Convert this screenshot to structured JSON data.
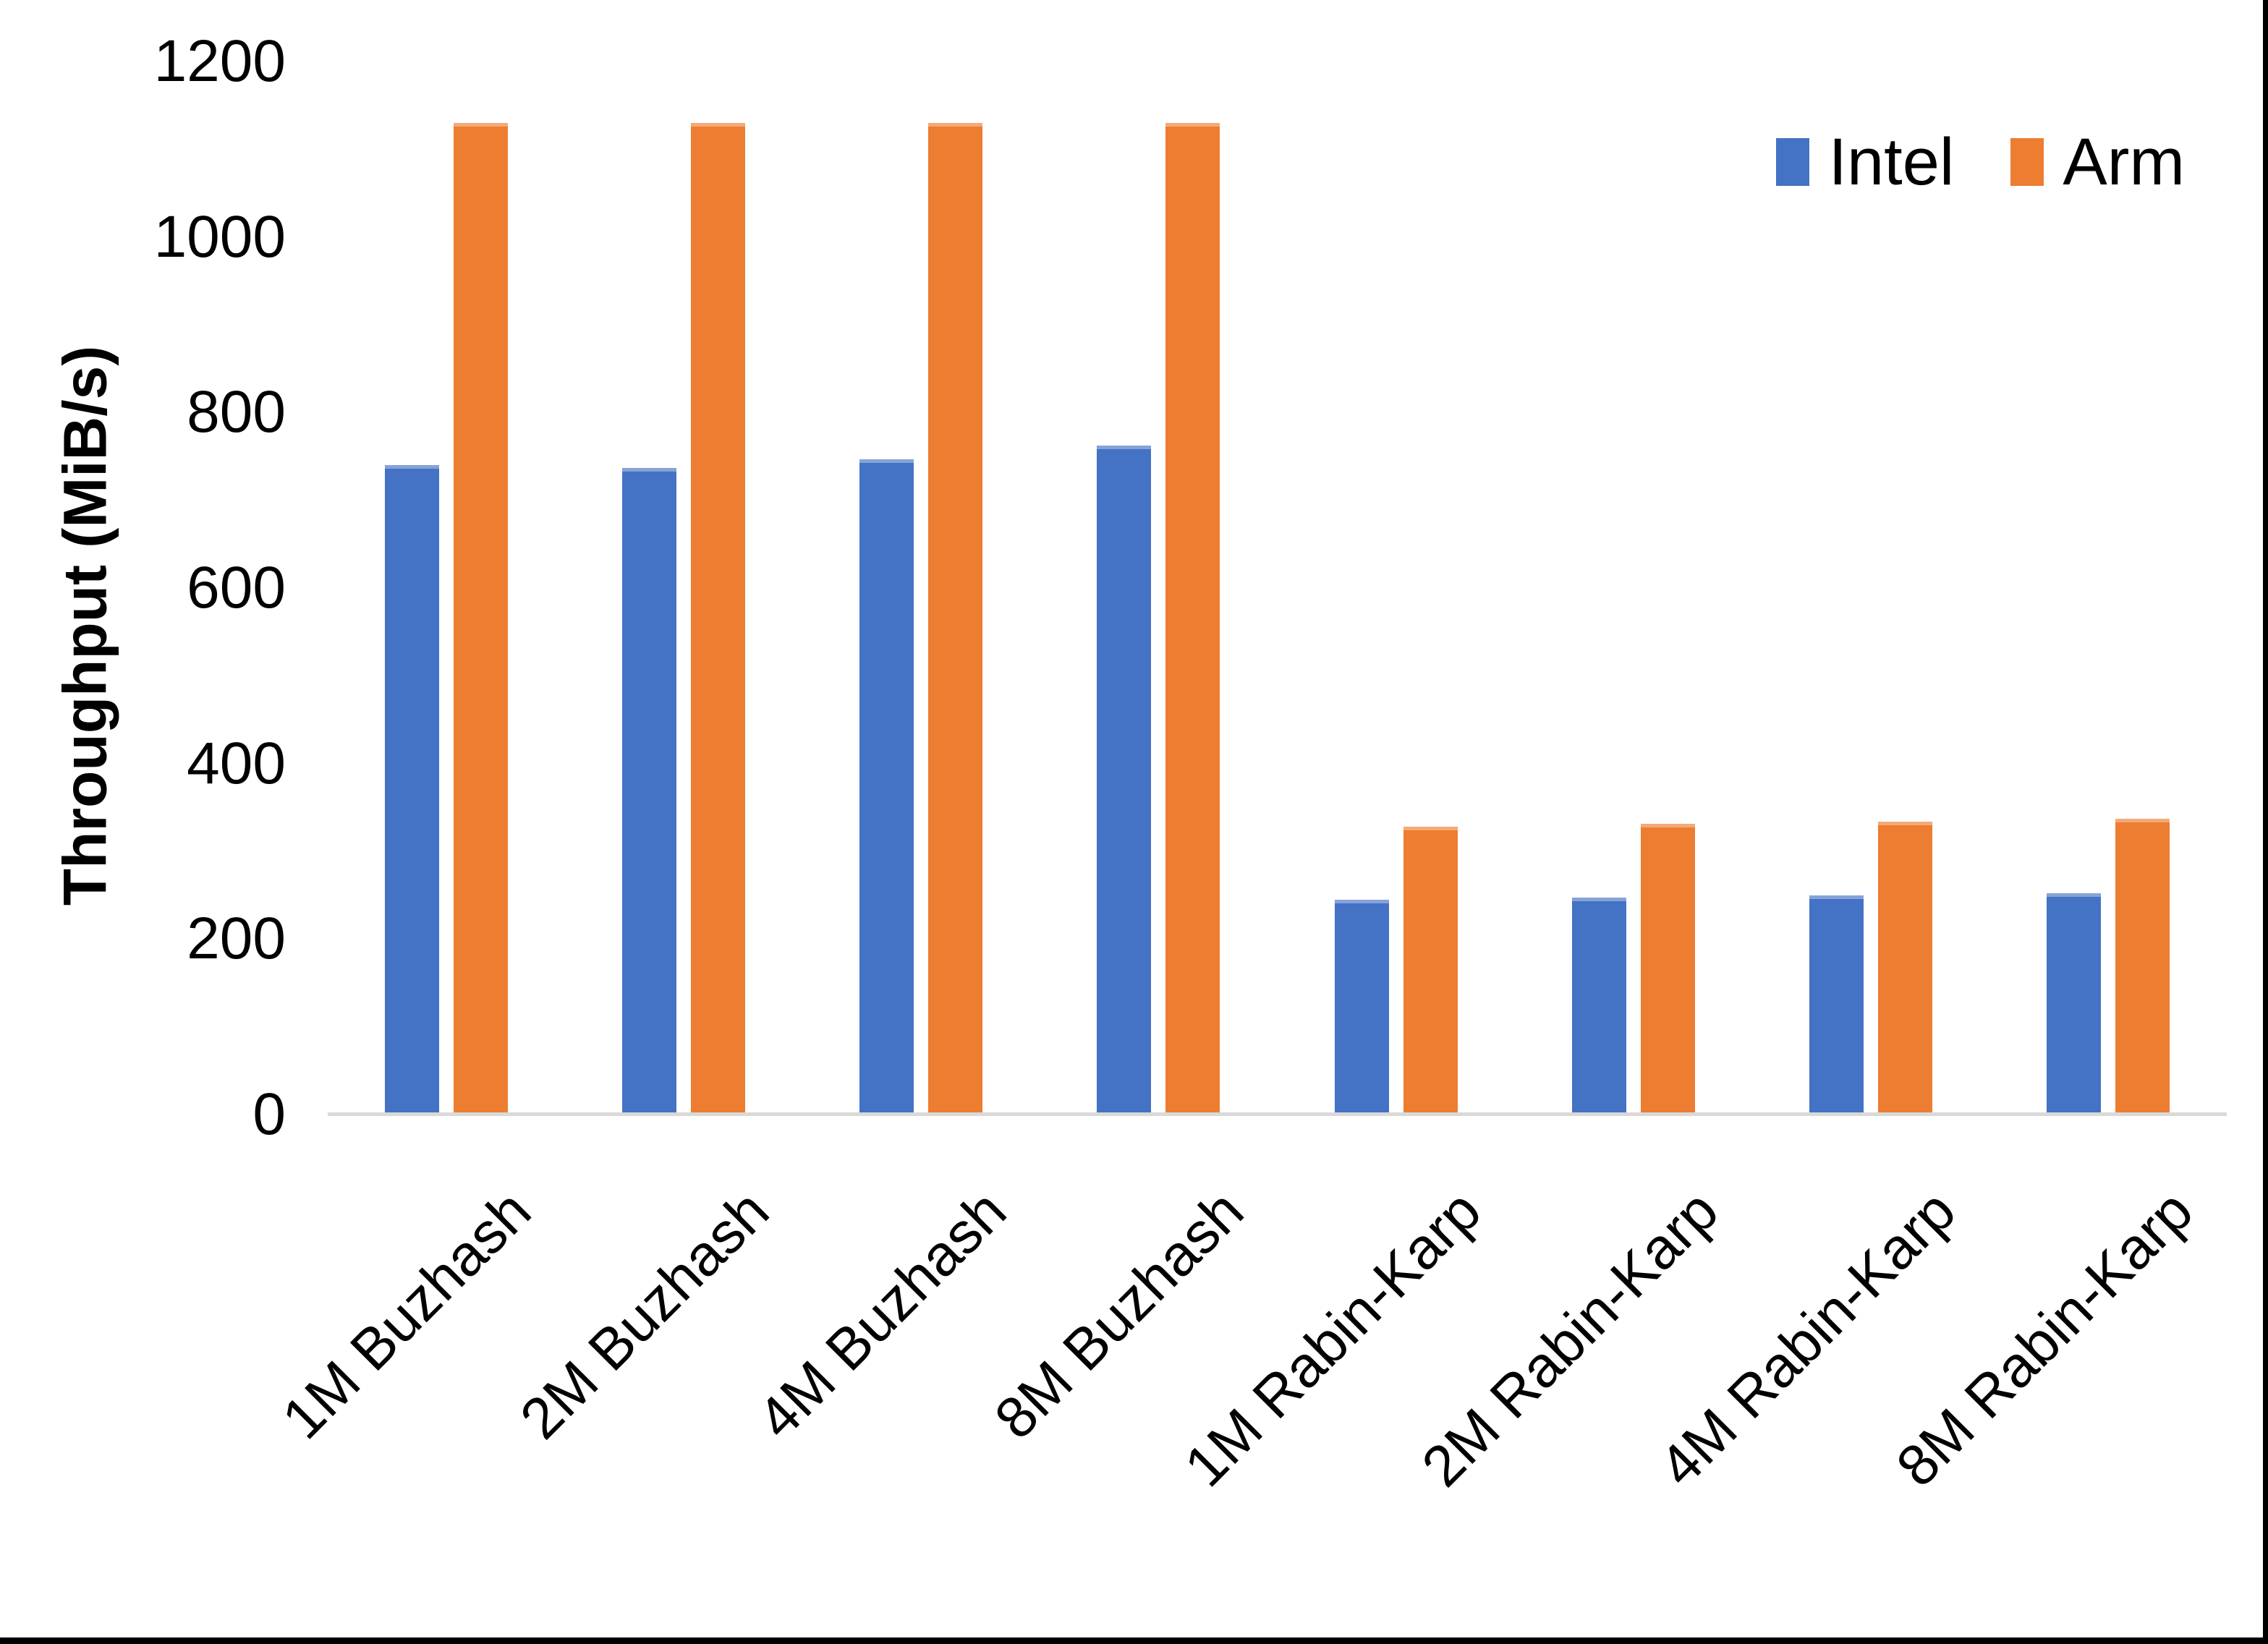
{
  "chart_data": {
    "type": "bar",
    "title": "",
    "xlabel": "",
    "ylabel": "Throughput (MiB/s)",
    "ylim": [
      0,
      1200
    ],
    "yticks": [
      0,
      200,
      400,
      600,
      800,
      1000,
      1200
    ],
    "grid": false,
    "legend_position": "top-right",
    "categories": [
      "1M Buzhash",
      "2M Buzhash",
      "4M Buzhash",
      "8M Buzhash",
      "1M Rabin-Karp",
      "2M Rabin-Karp",
      "4M Rabin-Karp",
      "8M Rabin-Karp"
    ],
    "series": [
      {
        "name": "Intel",
        "color": "#4472C4",
        "values": [
          740,
          737,
          747,
          762,
          245,
          247,
          250,
          252
        ]
      },
      {
        "name": "Arm",
        "color": "#ED7D31",
        "values": [
          1130,
          1130,
          1130,
          1130,
          328,
          331,
          334,
          337
        ]
      }
    ]
  },
  "colors": {
    "background": "#FFFFFF",
    "axis_line": "#D9D9D9",
    "text": "#000000",
    "frame_border": "#000000"
  }
}
